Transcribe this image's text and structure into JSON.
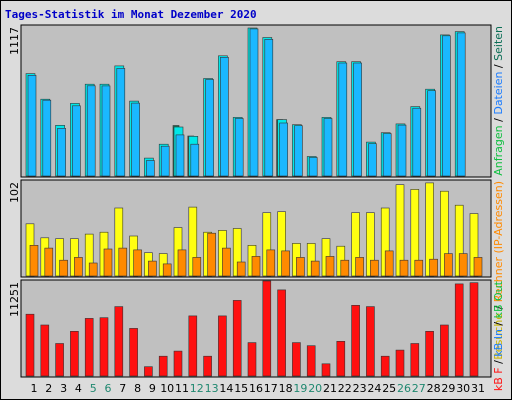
{
  "title": "Tages-Statistik im Monat Dezember 2020",
  "legend": {
    "top": {
      "anfragen": "Anfragen",
      "sep1": " / ",
      "dateien": "Dateien",
      "sep2": " / ",
      "seiten": "Seiten"
    },
    "mid": {
      "besuche": "Besuche",
      "sep1": " / ",
      "rechner": "Rechner (IP-Adressen)"
    },
    "bottom": {
      "kb_f": "kB F",
      "sep1": " / ",
      "kb_in": "kB In",
      "sep2": " / ",
      "kb_out": "kB Out"
    }
  },
  "colors": {
    "anfragen": "#00e8e8",
    "dateien": "#1ab8ff",
    "seiten": "#137a5a",
    "besuche": "#ffff11",
    "rechner": "#ff8a00",
    "kb_f": "#ff1010",
    "kb_in": "#1ab8ff",
    "kb_out": "#10c040",
    "weekend_label": "#208870",
    "weekday_label": "#000000",
    "title": "#0000c8"
  },
  "chart_data": [
    {
      "type": "bar",
      "y_axis_label": "1117",
      "ylim": [
        0,
        1117
      ],
      "categories": [
        "1",
        "2",
        "3",
        "4",
        "5",
        "6",
        "7",
        "8",
        "9",
        "10",
        "11",
        "12",
        "13",
        "14",
        "15",
        "16",
        "17",
        "18",
        "19",
        "20",
        "21",
        "22",
        "23",
        "24",
        "25",
        "26",
        "27",
        "28",
        "29",
        "30",
        "31"
      ],
      "weekend_days": [
        "5",
        "6",
        "12",
        "13",
        "19",
        "20",
        "26",
        "27"
      ],
      "series": [
        {
          "name": "Anfragen",
          "color_key": "anfragen",
          "values": [
            773,
            580,
            383,
            548,
            693,
            693,
            831,
            565,
            135,
            240,
            370,
            300,
            736,
            907,
            442,
            1117,
            1045,
            426,
            387,
            147,
            442,
            863,
            863,
            256,
            327,
            393,
            524,
            655,
            1065,
            1090,
            0
          ]
        },
        {
          "name": "Dateien",
          "color_key": "dateien",
          "values": [
            760,
            572,
            360,
            530,
            681,
            680,
            812,
            550,
            117,
            225,
            310,
            240,
            728,
            896,
            434,
            1110,
            1032,
            400,
            380,
            140,
            434,
            853,
            853,
            244,
            320,
            384,
            512,
            644,
            1058,
            1080,
            0
          ]
        },
        {
          "name": "Seiten",
          "color_key": "seiten",
          "values": [
            0,
            0,
            0,
            0,
            0,
            0,
            0,
            0,
            0,
            0,
            381,
            302,
            0,
            0,
            0,
            0,
            0,
            426,
            0,
            0,
            0,
            0,
            0,
            0,
            0,
            0,
            0,
            0,
            0,
            0,
            0
          ]
        }
      ]
    },
    {
      "type": "bar",
      "y_axis_label": "102",
      "ylim": [
        0,
        102
      ],
      "categories": [
        "1",
        "2",
        "3",
        "4",
        "5",
        "6",
        "7",
        "8",
        "9",
        "10",
        "11",
        "12",
        "13",
        "14",
        "15",
        "16",
        "17",
        "18",
        "19",
        "20",
        "21",
        "22",
        "23",
        "24",
        "25",
        "26",
        "27",
        "28",
        "29",
        "30",
        "31"
      ],
      "series": [
        {
          "name": "Besuche",
          "color_key": "besuche",
          "values": [
            56,
            41,
            40,
            40,
            45,
            47,
            73,
            43,
            25,
            24,
            52,
            74,
            47,
            49,
            51,
            33,
            68,
            69,
            35,
            35,
            40,
            32,
            68,
            68,
            73,
            98,
            93,
            100,
            91,
            76,
            67
          ]
        },
        {
          "name": "Rechner (IP-Adressen)",
          "color_key": "rechner",
          "values": [
            33,
            30,
            17,
            20,
            14,
            29,
            30,
            28,
            16,
            13,
            28,
            20,
            46,
            30,
            15,
            21,
            28,
            27,
            20,
            16,
            21,
            17,
            20,
            17,
            27,
            17,
            17,
            18,
            24,
            24,
            20
          ]
        }
      ]
    },
    {
      "type": "bar",
      "y_axis_label": "11251",
      "ylim": [
        0,
        11251
      ],
      "categories": [
        "1",
        "2",
        "3",
        "4",
        "5",
        "6",
        "7",
        "8",
        "9",
        "10",
        "11",
        "12",
        "13",
        "14",
        "15",
        "16",
        "17",
        "18",
        "19",
        "20",
        "21",
        "22",
        "23",
        "24",
        "25",
        "26",
        "27",
        "28",
        "29",
        "30",
        "31"
      ],
      "series": [
        {
          "name": "kB F",
          "color_key": "kb_f",
          "values": [
            7316,
            6038,
            3847,
            5294,
            6816,
            6901,
            8214,
            5637,
            1100,
            2350,
            2950,
            7120,
            2350,
            7120,
            8950,
            3960,
            11251,
            10200,
            3960,
            3587,
            1450,
            4110,
            8370,
            8214,
            2350,
            3069,
            3847,
            5294,
            6038,
            10910,
            11051
          ]
        }
      ]
    }
  ]
}
